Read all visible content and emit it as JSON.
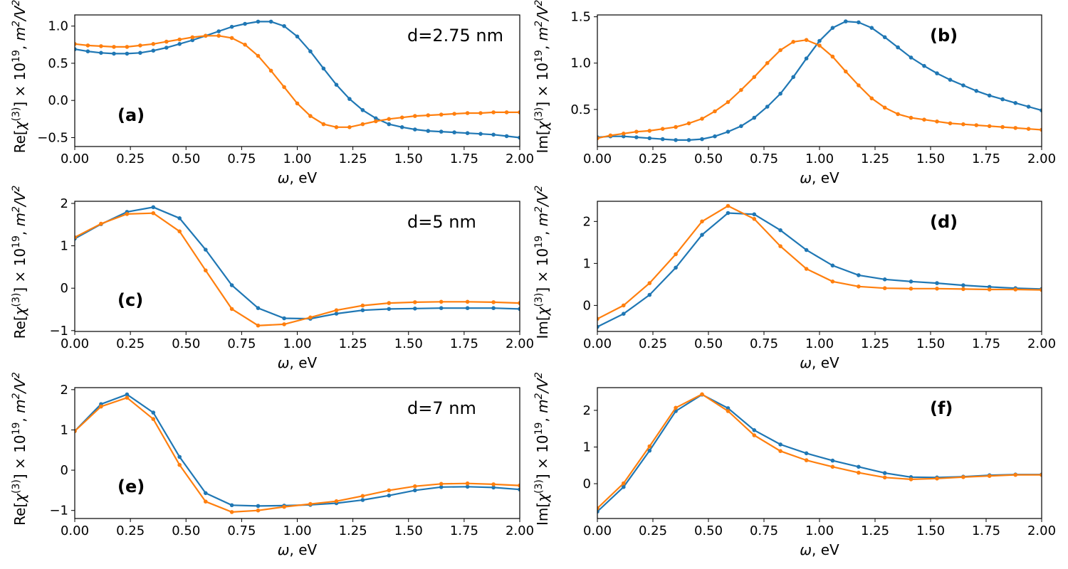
{
  "colors": {
    "series_1": "#1f77b4",
    "series_2": "#ff7f0e"
  },
  "chart_data": [
    {
      "id": "a",
      "type": "line",
      "panel_label": "(a)",
      "annotation": "d=2.75 nm",
      "ylabel": "Re[χ(3)] × 10^19, m²/V²",
      "xlabel": "ω, eV",
      "xlim": [
        0,
        2
      ],
      "ylim": [
        -0.62,
        1.15
      ],
      "xticks": [
        0,
        0.25,
        0.5,
        0.75,
        1.0,
        1.25,
        1.5,
        1.75,
        2.0
      ],
      "xtick_labels": [
        "0.00",
        "0.25",
        "0.50",
        "0.75",
        "1.00",
        "1.25",
        "1.50",
        "1.75",
        "2.00"
      ],
      "yticks": [
        -0.5,
        0,
        0.5,
        1.0
      ],
      "ytick_labels": [
        "−0.5",
        "0.0",
        "0.5",
        "1.0"
      ],
      "grid": false,
      "series": [
        {
          "color": "#1f77b4",
          "x": [
            0,
            0.059,
            0.118,
            0.176,
            0.235,
            0.294,
            0.353,
            0.412,
            0.471,
            0.529,
            0.588,
            0.647,
            0.706,
            0.765,
            0.824,
            0.882,
            0.941,
            1.0,
            1.059,
            1.118,
            1.176,
            1.235,
            1.294,
            1.353,
            1.412,
            1.471,
            1.529,
            1.588,
            1.647,
            1.706,
            1.765,
            1.824,
            1.882,
            1.941,
            2.0
          ],
          "y": [
            0.69,
            0.66,
            0.64,
            0.63,
            0.63,
            0.64,
            0.67,
            0.71,
            0.76,
            0.81,
            0.87,
            0.93,
            0.99,
            1.03,
            1.06,
            1.06,
            1.0,
            0.86,
            0.66,
            0.43,
            0.21,
            0.02,
            -0.13,
            -0.24,
            -0.32,
            -0.36,
            -0.39,
            -0.41,
            -0.42,
            -0.43,
            -0.44,
            -0.45,
            -0.46,
            -0.48,
            -0.5
          ]
        },
        {
          "color": "#ff7f0e",
          "x": [
            0,
            0.059,
            0.118,
            0.176,
            0.235,
            0.294,
            0.353,
            0.412,
            0.471,
            0.529,
            0.588,
            0.647,
            0.706,
            0.765,
            0.824,
            0.882,
            0.941,
            1.0,
            1.059,
            1.118,
            1.176,
            1.235,
            1.294,
            1.353,
            1.412,
            1.471,
            1.529,
            1.588,
            1.647,
            1.706,
            1.765,
            1.824,
            1.882,
            1.941,
            2.0
          ],
          "y": [
            0.76,
            0.74,
            0.73,
            0.72,
            0.72,
            0.74,
            0.76,
            0.79,
            0.82,
            0.85,
            0.87,
            0.87,
            0.84,
            0.75,
            0.6,
            0.4,
            0.18,
            -0.04,
            -0.21,
            -0.32,
            -0.36,
            -0.36,
            -0.32,
            -0.28,
            -0.25,
            -0.23,
            -0.21,
            -0.2,
            -0.19,
            -0.18,
            -0.17,
            -0.17,
            -0.16,
            -0.16,
            -0.16
          ]
        }
      ]
    },
    {
      "id": "b",
      "type": "line",
      "panel_label": "(b)",
      "ylabel": "Im[χ(3)] × 10^19, m²/V²",
      "xlabel": "ω, eV",
      "xlim": [
        0,
        2
      ],
      "ylim": [
        0.1,
        1.52
      ],
      "xticks": [
        0,
        0.25,
        0.5,
        0.75,
        1.0,
        1.25,
        1.5,
        1.75,
        2.0
      ],
      "xtick_labels": [
        "0.00",
        "0.25",
        "0.50",
        "0.75",
        "1.00",
        "1.25",
        "1.50",
        "1.75",
        "2.00"
      ],
      "yticks": [
        0.5,
        1.0,
        1.5
      ],
      "ytick_labels": [
        "0.5",
        "1.0",
        "1.5"
      ],
      "grid": false,
      "series": [
        {
          "color": "#1f77b4",
          "x": [
            0,
            0.059,
            0.118,
            0.176,
            0.235,
            0.294,
            0.353,
            0.412,
            0.471,
            0.529,
            0.588,
            0.647,
            0.706,
            0.765,
            0.824,
            0.882,
            0.941,
            1.0,
            1.059,
            1.118,
            1.176,
            1.235,
            1.294,
            1.353,
            1.412,
            1.471,
            1.529,
            1.588,
            1.647,
            1.706,
            1.765,
            1.824,
            1.882,
            1.941,
            2.0
          ],
          "y": [
            0.2,
            0.21,
            0.21,
            0.2,
            0.19,
            0.18,
            0.17,
            0.17,
            0.18,
            0.21,
            0.26,
            0.32,
            0.41,
            0.53,
            0.67,
            0.85,
            1.05,
            1.24,
            1.38,
            1.45,
            1.44,
            1.38,
            1.28,
            1.17,
            1.06,
            0.97,
            0.89,
            0.82,
            0.76,
            0.7,
            0.65,
            0.61,
            0.57,
            0.53,
            0.49
          ]
        },
        {
          "color": "#ff7f0e",
          "x": [
            0,
            0.059,
            0.118,
            0.176,
            0.235,
            0.294,
            0.353,
            0.412,
            0.471,
            0.529,
            0.588,
            0.647,
            0.706,
            0.765,
            0.824,
            0.882,
            0.941,
            1.0,
            1.059,
            1.118,
            1.176,
            1.235,
            1.294,
            1.353,
            1.412,
            1.471,
            1.529,
            1.588,
            1.647,
            1.706,
            1.765,
            1.824,
            1.882,
            1.941,
            2.0
          ],
          "y": [
            0.19,
            0.22,
            0.24,
            0.26,
            0.27,
            0.29,
            0.31,
            0.35,
            0.4,
            0.48,
            0.58,
            0.71,
            0.85,
            1.0,
            1.14,
            1.23,
            1.25,
            1.19,
            1.07,
            0.91,
            0.76,
            0.62,
            0.52,
            0.45,
            0.41,
            0.39,
            0.37,
            0.35,
            0.34,
            0.33,
            0.32,
            0.31,
            0.3,
            0.29,
            0.28
          ]
        }
      ]
    },
    {
      "id": "c",
      "type": "line",
      "panel_label": "(c)",
      "annotation": "d=5 nm",
      "ylabel": "Re[χ(3)] × 10^19, m²/V²",
      "xlabel": "ω, eV",
      "xlim": [
        0,
        2
      ],
      "ylim": [
        -1.02,
        2.05
      ],
      "xticks": [
        0,
        0.25,
        0.5,
        0.75,
        1.0,
        1.25,
        1.5,
        1.75,
        2.0
      ],
      "xtick_labels": [
        "0.00",
        "0.25",
        "0.50",
        "0.75",
        "1.00",
        "1.25",
        "1.50",
        "1.75",
        "2.00"
      ],
      "yticks": [
        -1,
        0,
        1,
        2
      ],
      "ytick_labels": [
        "−1",
        "0",
        "1",
        "2"
      ],
      "grid": false,
      "series": [
        {
          "color": "#1f77b4",
          "x": [
            0,
            0.118,
            0.235,
            0.353,
            0.471,
            0.588,
            0.706,
            0.824,
            0.941,
            1.059,
            1.176,
            1.294,
            1.412,
            1.529,
            1.647,
            1.765,
            1.882,
            2.0
          ],
          "y": [
            1.17,
            1.51,
            1.8,
            1.91,
            1.65,
            0.91,
            0.07,
            -0.47,
            -0.71,
            -0.72,
            -0.6,
            -0.52,
            -0.49,
            -0.48,
            -0.47,
            -0.47,
            -0.47,
            -0.49
          ]
        },
        {
          "color": "#ff7f0e",
          "x": [
            0,
            0.118,
            0.235,
            0.353,
            0.471,
            0.588,
            0.706,
            0.824,
            0.941,
            1.059,
            1.176,
            1.294,
            1.412,
            1.529,
            1.647,
            1.765,
            1.882,
            2.0
          ],
          "y": [
            1.2,
            1.52,
            1.75,
            1.77,
            1.34,
            0.42,
            -0.49,
            -0.88,
            -0.85,
            -0.69,
            -0.52,
            -0.41,
            -0.35,
            -0.33,
            -0.32,
            -0.32,
            -0.33,
            -0.35
          ]
        }
      ]
    },
    {
      "id": "d",
      "type": "line",
      "panel_label": "(d)",
      "ylabel": "Im[χ(3)] × 10^19, m²/V²",
      "xlabel": "ω, eV",
      "xlim": [
        0,
        2
      ],
      "ylim": [
        -0.62,
        2.48
      ],
      "xticks": [
        0,
        0.25,
        0.5,
        0.75,
        1.0,
        1.25,
        1.5,
        1.75,
        2.0
      ],
      "xtick_labels": [
        "0.00",
        "0.25",
        "0.50",
        "0.75",
        "1.00",
        "1.25",
        "1.50",
        "1.75",
        "2.00"
      ],
      "yticks": [
        0,
        1,
        2
      ],
      "ytick_labels": [
        "0",
        "1",
        "2"
      ],
      "grid": false,
      "series": [
        {
          "color": "#1f77b4",
          "x": [
            0,
            0.118,
            0.235,
            0.353,
            0.471,
            0.588,
            0.706,
            0.824,
            0.941,
            1.059,
            1.176,
            1.294,
            1.412,
            1.529,
            1.647,
            1.765,
            1.882,
            2.0
          ],
          "y": [
            -0.51,
            -0.2,
            0.25,
            0.9,
            1.68,
            2.2,
            2.17,
            1.79,
            1.32,
            0.95,
            0.72,
            0.62,
            0.57,
            0.53,
            0.48,
            0.44,
            0.41,
            0.39
          ]
        },
        {
          "color": "#ff7f0e",
          "x": [
            0,
            0.118,
            0.235,
            0.353,
            0.471,
            0.588,
            0.706,
            0.824,
            0.941,
            1.059,
            1.176,
            1.294,
            1.412,
            1.529,
            1.647,
            1.765,
            1.882,
            2.0
          ],
          "y": [
            -0.32,
            0.0,
            0.53,
            1.22,
            2.0,
            2.37,
            2.06,
            1.41,
            0.87,
            0.57,
            0.45,
            0.41,
            0.4,
            0.4,
            0.39,
            0.38,
            0.38,
            0.37
          ]
        }
      ]
    },
    {
      "id": "e",
      "type": "line",
      "panel_label": "(e)",
      "annotation": "d=7 nm",
      "ylabel": "Re[χ(3)] × 10^19, m²/V²",
      "xlabel": "ω, eV",
      "xlim": [
        0,
        2
      ],
      "ylim": [
        -1.2,
        2.05
      ],
      "xticks": [
        0,
        0.25,
        0.5,
        0.75,
        1.0,
        1.25,
        1.5,
        1.75,
        2.0
      ],
      "xtick_labels": [
        "0.00",
        "0.25",
        "0.50",
        "0.75",
        "1.00",
        "1.25",
        "1.50",
        "1.75",
        "2.00"
      ],
      "yticks": [
        -1,
        0,
        1,
        2
      ],
      "ytick_labels": [
        "−1",
        "0",
        "1",
        "2"
      ],
      "grid": false,
      "series": [
        {
          "color": "#1f77b4",
          "x": [
            0,
            0.118,
            0.235,
            0.353,
            0.471,
            0.588,
            0.706,
            0.824,
            0.941,
            1.059,
            1.176,
            1.294,
            1.412,
            1.529,
            1.647,
            1.765,
            1.882,
            2.0
          ],
          "y": [
            0.97,
            1.64,
            1.88,
            1.43,
            0.33,
            -0.57,
            -0.87,
            -0.89,
            -0.88,
            -0.86,
            -0.82,
            -0.74,
            -0.63,
            -0.5,
            -0.42,
            -0.41,
            -0.43,
            -0.48
          ]
        },
        {
          "color": "#ff7f0e",
          "x": [
            0,
            0.118,
            0.235,
            0.353,
            0.471,
            0.588,
            0.706,
            0.824,
            0.941,
            1.059,
            1.176,
            1.294,
            1.412,
            1.529,
            1.647,
            1.765,
            1.882,
            2.0
          ],
          "y": [
            0.97,
            1.58,
            1.8,
            1.27,
            0.13,
            -0.78,
            -1.04,
            -1.0,
            -0.91,
            -0.84,
            -0.77,
            -0.64,
            -0.5,
            -0.4,
            -0.34,
            -0.33,
            -0.35,
            -0.38
          ]
        }
      ]
    },
    {
      "id": "f",
      "type": "line",
      "panel_label": "(f)",
      "ylabel": "Im[χ(3)] × 10^19, m²/V²",
      "xlabel": "ω, eV",
      "xlim": [
        0,
        2
      ],
      "ylim": [
        -0.95,
        2.62
      ],
      "xticks": [
        0,
        0.25,
        0.5,
        0.75,
        1.0,
        1.25,
        1.5,
        1.75,
        2.0
      ],
      "xtick_labels": [
        "0.00",
        "0.25",
        "0.50",
        "0.75",
        "1.00",
        "1.25",
        "1.50",
        "1.75",
        "2.00"
      ],
      "yticks": [
        0,
        1,
        2
      ],
      "ytick_labels": [
        "0",
        "1",
        "2"
      ],
      "grid": false,
      "series": [
        {
          "color": "#1f77b4",
          "x": [
            0,
            0.118,
            0.235,
            0.353,
            0.471,
            0.588,
            0.706,
            0.824,
            0.941,
            1.059,
            1.176,
            1.294,
            1.412,
            1.529,
            1.647,
            1.765,
            1.882,
            2.0
          ],
          "y": [
            -0.76,
            -0.09,
            0.9,
            1.98,
            2.43,
            2.06,
            1.46,
            1.07,
            0.83,
            0.63,
            0.46,
            0.29,
            0.18,
            0.17,
            0.19,
            0.23,
            0.25,
            0.25
          ]
        },
        {
          "color": "#ff7f0e",
          "x": [
            0,
            0.118,
            0.235,
            0.353,
            0.471,
            0.588,
            0.706,
            0.824,
            0.941,
            1.059,
            1.176,
            1.294,
            1.412,
            1.529,
            1.647,
            1.765,
            1.882,
            2.0
          ],
          "y": [
            -0.67,
            0.01,
            1.02,
            2.07,
            2.44,
            1.98,
            1.32,
            0.89,
            0.64,
            0.46,
            0.3,
            0.17,
            0.12,
            0.14,
            0.18,
            0.21,
            0.24,
            0.24
          ]
        }
      ]
    }
  ]
}
